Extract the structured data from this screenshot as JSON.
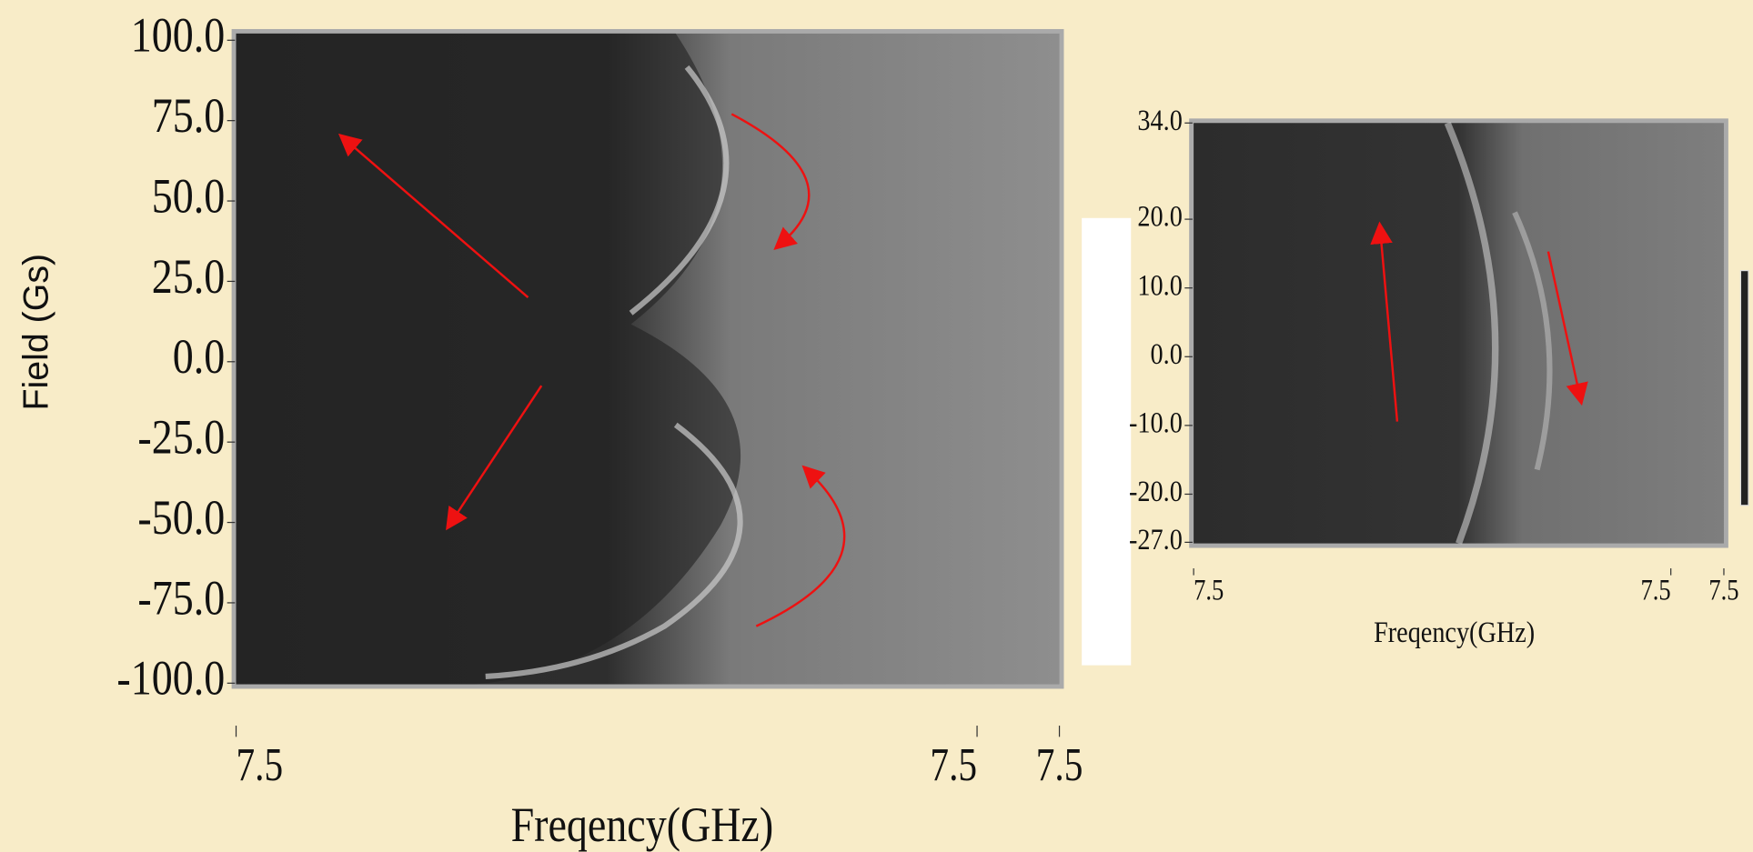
{
  "chart_data": [
    {
      "type": "heatmap",
      "x_label": "Freqency(GHz)",
      "y_label": "Field (Gs)",
      "xlim": [
        7.45,
        7.55
      ],
      "ylim": [
        -100,
        100
      ],
      "xticks": [
        {
          "value": 7.45,
          "label": "7.5"
        },
        {
          "value": 7.54,
          "label": "7.5"
        },
        {
          "value": 7.55,
          "label": "7.5"
        }
      ],
      "yticks": [
        {
          "value": 100,
          "label": "100.0"
        },
        {
          "value": 75,
          "label": "75.0"
        },
        {
          "value": 50,
          "label": "50.0"
        },
        {
          "value": 25,
          "label": "25.0"
        },
        {
          "value": 0,
          "label": "0.0"
        },
        {
          "value": -25,
          "label": "-25.0"
        },
        {
          "value": -50,
          "label": "-50.0"
        },
        {
          "value": -75,
          "label": "-75.0"
        },
        {
          "value": -100,
          "label": "-100.0"
        }
      ]
    },
    {
      "type": "heatmap",
      "x_label": "Freqency(GHz)",
      "xlim": [
        7.45,
        7.55
      ],
      "ylim": [
        -27,
        34
      ],
      "xticks": [
        {
          "value": 7.45,
          "label": "7.5"
        },
        {
          "value": 7.54,
          "label": "7.5"
        },
        {
          "value": 7.55,
          "label": "7.5"
        }
      ],
      "yticks": [
        {
          "value": 34,
          "label": "34.0"
        },
        {
          "value": 20,
          "label": "20.0"
        },
        {
          "value": 10,
          "label": "10.0"
        },
        {
          "value": 0,
          "label": "0.0"
        },
        {
          "value": -10,
          "label": "-10.0"
        },
        {
          "value": -20,
          "label": "-20.0"
        },
        {
          "value": -27,
          "label": "-27.0"
        }
      ]
    }
  ]
}
